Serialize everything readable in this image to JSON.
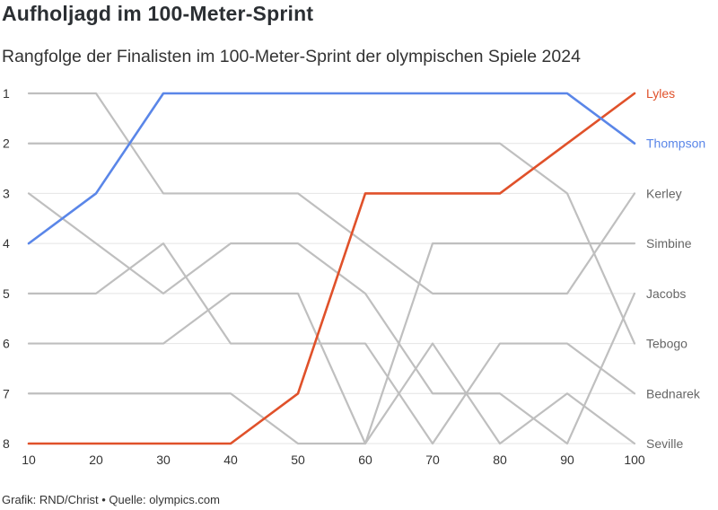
{
  "title": "Aufholjagd im 100-Meter-Sprint",
  "subtitle": "Rangfolge der Finalisten im 100-Meter-Sprint der olympischen Spiele 2024",
  "footer": "Grafik: RND/Christ • Quelle: olympics.com",
  "chart_data": {
    "type": "line",
    "x": [
      10,
      20,
      30,
      40,
      50,
      60,
      70,
      80,
      90,
      100
    ],
    "xticks": [
      10,
      20,
      30,
      40,
      50,
      60,
      70,
      80,
      90,
      100
    ],
    "yticks": [
      1,
      2,
      3,
      4,
      5,
      6,
      7,
      8
    ],
    "ylim": [
      1,
      8
    ],
    "y_inverted": true,
    "grid": "horizontal",
    "series": [
      {
        "name": "Lyles",
        "color": "#e0512a",
        "highlight": true,
        "values": [
          8,
          8,
          8,
          8,
          7,
          3,
          3,
          3,
          2,
          1
        ]
      },
      {
        "name": "Thompson",
        "color": "#5a86e8",
        "highlight": true,
        "values": [
          4,
          3,
          1,
          1,
          1,
          1,
          1,
          1,
          1,
          2
        ]
      },
      {
        "name": "Kerley",
        "color": "#bfbfbf",
        "highlight": false,
        "values": [
          1,
          1,
          3,
          3,
          3,
          4,
          5,
          5,
          5,
          3
        ]
      },
      {
        "name": "Simbine",
        "color": "#bfbfbf",
        "highlight": false,
        "values": [
          6,
          6,
          6,
          5,
          5,
          8,
          4,
          4,
          4,
          4
        ]
      },
      {
        "name": "Jacobs",
        "color": "#bfbfbf",
        "highlight": false,
        "values": [
          3,
          4,
          5,
          4,
          4,
          5,
          7,
          7,
          8,
          5
        ]
      },
      {
        "name": "Tebogo",
        "color": "#bfbfbf",
        "highlight": false,
        "values": [
          2,
          2,
          2,
          2,
          2,
          2,
          2,
          2,
          3,
          6
        ]
      },
      {
        "name": "Bednarek",
        "color": "#bfbfbf",
        "highlight": false,
        "values": [
          5,
          5,
          4,
          6,
          6,
          6,
          8,
          6,
          6,
          7
        ]
      },
      {
        "name": "Seville",
        "color": "#bfbfbf",
        "highlight": false,
        "values": [
          7,
          7,
          7,
          7,
          8,
          8,
          6,
          8,
          7,
          8
        ]
      }
    ]
  }
}
